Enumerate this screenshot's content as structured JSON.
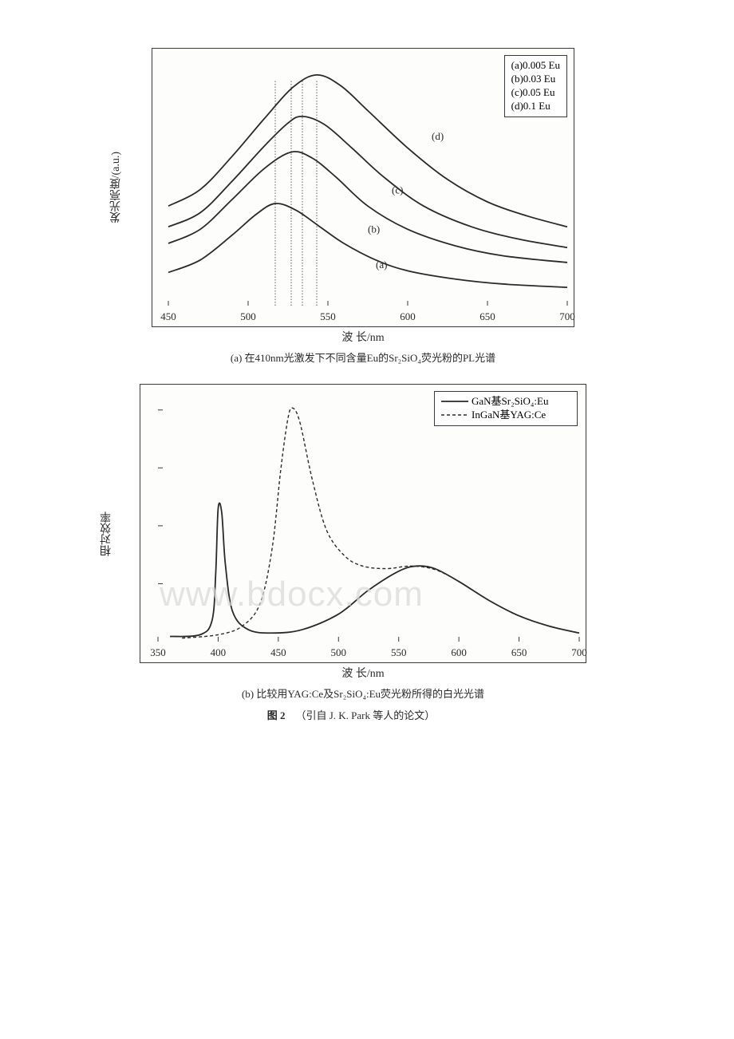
{
  "watermark": "www.bdocx.com",
  "chart_a": {
    "type": "line-spectra",
    "y_label": "发光亮度/(a.u.)",
    "x_label": "波 长/nm",
    "caption": "(a) 在410nm光激发下不同含量Eu的Sr₂SiO₄荧光粉的PL光谱",
    "xlim": [
      450,
      700
    ],
    "xticks": [
      450,
      500,
      550,
      600,
      650,
      700
    ],
    "legend_items": [
      "(a)0.005 Eu",
      "(b)0.03 Eu",
      "(c)0.05 Eu",
      "(d)0.1 Eu"
    ],
    "curve_labels": [
      "(a)",
      "(b)",
      "(c)",
      "(d)"
    ],
    "peak_markers_nm": [
      517,
      527,
      534,
      543
    ],
    "stroke_color": "#2a2a2a",
    "axis_color": "#3a3a3a",
    "background_color": "#fdfdfb",
    "series": {
      "a": [
        [
          450,
          40
        ],
        [
          470,
          55
        ],
        [
          490,
          85
        ],
        [
          505,
          110
        ],
        [
          517,
          123
        ],
        [
          530,
          115
        ],
        [
          545,
          95
        ],
        [
          560,
          75
        ],
        [
          580,
          55
        ],
        [
          600,
          42
        ],
        [
          630,
          32
        ],
        [
          660,
          26
        ],
        [
          700,
          22
        ]
      ],
      "b": [
        [
          450,
          75
        ],
        [
          470,
          92
        ],
        [
          490,
          128
        ],
        [
          510,
          165
        ],
        [
          527,
          185
        ],
        [
          540,
          178
        ],
        [
          555,
          155
        ],
        [
          575,
          120
        ],
        [
          600,
          92
        ],
        [
          630,
          72
        ],
        [
          660,
          60
        ],
        [
          700,
          52
        ]
      ],
      "c": [
        [
          450,
          95
        ],
        [
          470,
          112
        ],
        [
          490,
          150
        ],
        [
          510,
          192
        ],
        [
          525,
          220
        ],
        [
          534,
          228
        ],
        [
          548,
          218
        ],
        [
          565,
          190
        ],
        [
          585,
          155
        ],
        [
          610,
          120
        ],
        [
          640,
          95
        ],
        [
          670,
          80
        ],
        [
          700,
          70
        ]
      ],
      "d": [
        [
          450,
          120
        ],
        [
          470,
          140
        ],
        [
          490,
          180
        ],
        [
          510,
          225
        ],
        [
          528,
          263
        ],
        [
          543,
          278
        ],
        [
          558,
          265
        ],
        [
          575,
          235
        ],
        [
          600,
          190
        ],
        [
          625,
          152
        ],
        [
          650,
          125
        ],
        [
          675,
          108
        ],
        [
          700,
          95
        ]
      ]
    }
  },
  "chart_b": {
    "type": "line-spectra-comparison",
    "y_label": "相对效率",
    "x_label": "波 长/nm",
    "caption": "(b) 比较用YAG:Ce及Sr₂SiO₄:Eu荧光粉所得的白光光谱",
    "xlim": [
      350,
      700
    ],
    "xticks": [
      350,
      400,
      450,
      500,
      550,
      600,
      650,
      700
    ],
    "legend": [
      {
        "style": "solid",
        "label": "GaN基Sr₂SiO₄:Eu"
      },
      {
        "style": "dash",
        "label": "InGaN基YAG:Ce"
      }
    ],
    "stroke_color": "#2a2a2a",
    "axis_color": "#3a3a3a",
    "background_color": "#fdfdfb",
    "series_solid": [
      [
        360,
        6
      ],
      [
        385,
        8
      ],
      [
        395,
        25
      ],
      [
        398,
        80
      ],
      [
        400,
        155
      ],
      [
        403,
        150
      ],
      [
        406,
        90
      ],
      [
        412,
        35
      ],
      [
        425,
        14
      ],
      [
        445,
        10
      ],
      [
        470,
        14
      ],
      [
        500,
        32
      ],
      [
        525,
        60
      ],
      [
        550,
        82
      ],
      [
        565,
        88
      ],
      [
        580,
        85
      ],
      [
        600,
        70
      ],
      [
        625,
        48
      ],
      [
        650,
        30
      ],
      [
        675,
        18
      ],
      [
        700,
        10
      ]
    ],
    "series_dash": [
      [
        370,
        4
      ],
      [
        400,
        8
      ],
      [
        420,
        18
      ],
      [
        435,
        45
      ],
      [
        445,
        110
      ],
      [
        452,
        200
      ],
      [
        458,
        260
      ],
      [
        462,
        272
      ],
      [
        468,
        255
      ],
      [
        478,
        190
      ],
      [
        490,
        130
      ],
      [
        505,
        100
      ],
      [
        520,
        88
      ],
      [
        540,
        85
      ],
      [
        560,
        88
      ],
      [
        580,
        84
      ],
      [
        600,
        70
      ],
      [
        625,
        48
      ],
      [
        650,
        30
      ],
      [
        675,
        18
      ],
      [
        700,
        10
      ]
    ]
  },
  "figure_label": "图  2",
  "figure_source": "（引自 J. K. Park 等人的论文）"
}
